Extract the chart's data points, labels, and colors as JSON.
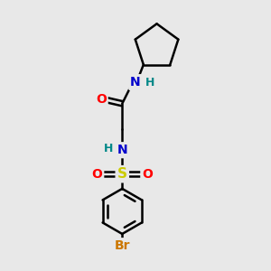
{
  "bg_color": "#e8e8e8",
  "atom_colors": {
    "C": "#000000",
    "N": "#0000cc",
    "O": "#ff0000",
    "S": "#cccc00",
    "Br": "#cc7700",
    "H": "#008888"
  },
  "bond_color": "#000000",
  "bond_width": 1.8,
  "figsize": [
    3.0,
    3.0
  ],
  "dpi": 100
}
